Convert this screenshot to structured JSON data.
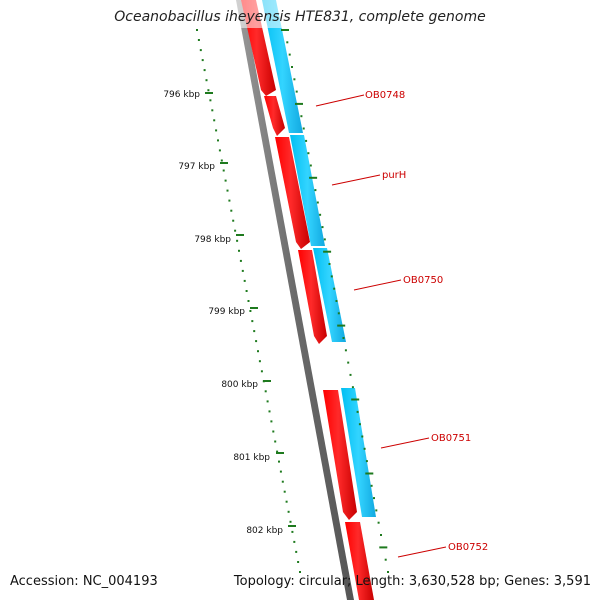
{
  "title": "Oceanobacillus iheyensis HTE831, complete genome",
  "footer": {
    "accession": "Accession: NC_004193",
    "summary": "Topology: circular; Length: 3,630,528 bp; Genes: 3,591"
  },
  "ruler_labels": [
    "796 kbp",
    "797 kbp",
    "798 kbp",
    "799 kbp",
    "800 kbp",
    "801 kbp",
    "802 kbp"
  ],
  "gene_labels": [
    "OB0748",
    "purH",
    "OB0750",
    "OB0751",
    "OB0752"
  ],
  "colors": {
    "backbone": "#7a7a7a",
    "cds": "#ff0000",
    "gene": "#1ec8f5",
    "tick": "#1e7a1e",
    "label": "#cc0000"
  }
}
